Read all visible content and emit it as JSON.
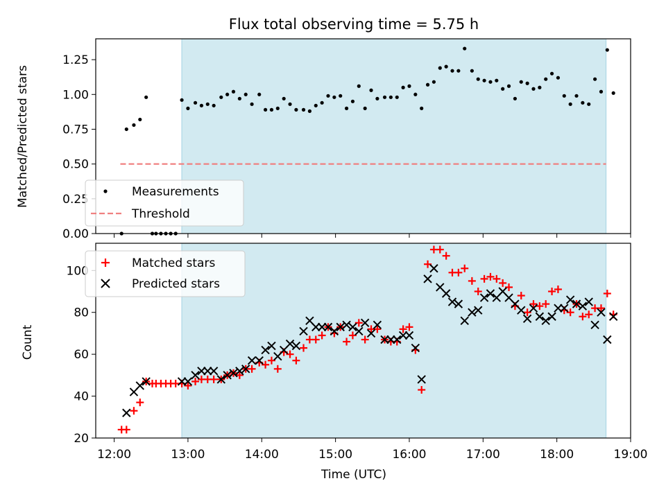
{
  "title": "Flux total observing time = 5.75 h",
  "colors": {
    "observing_span": "#add8e6",
    "measurement": "#000000",
    "threshold": "#f08080",
    "matched": "#ff0000",
    "predicted": "#000000"
  },
  "chart_data": [
    {
      "type": "scatter",
      "ylabel": "Matched/Predicted stars",
      "ylim": [
        0,
        1.4
      ],
      "xlim": [
        "11:45",
        "19:00"
      ],
      "yticks": [
        "0.00",
        "0.25",
        "0.50",
        "0.75",
        "1.00",
        "1.25"
      ],
      "shaded_span": [
        "12:55",
        "18:40"
      ],
      "legend": {
        "position": "lower-left",
        "entries": [
          "Measurements",
          "Threshold"
        ]
      },
      "threshold": {
        "name": "Threshold",
        "y": 0.5,
        "x_range": [
          "12:05",
          "18:40"
        ],
        "style": "dashed"
      },
      "series": [
        {
          "name": "Measurements",
          "marker": "dot",
          "points": [
            [
              "12:06",
              0.0
            ],
            [
              "12:10",
              0.75
            ],
            [
              "12:16",
              0.78
            ],
            [
              "12:21",
              0.82
            ],
            [
              "12:26",
              0.98
            ],
            [
              "12:31",
              0.0
            ],
            [
              "12:34",
              0.0
            ],
            [
              "12:38",
              0.0
            ],
            [
              "12:42",
              0.0
            ],
            [
              "12:46",
              0.0
            ],
            [
              "12:50",
              0.0
            ],
            [
              "12:55",
              0.96
            ],
            [
              "13:00",
              0.9
            ],
            [
              "13:06",
              0.94
            ],
            [
              "13:11",
              0.92
            ],
            [
              "13:16",
              0.93
            ],
            [
              "13:21",
              0.92
            ],
            [
              "13:27",
              0.98
            ],
            [
              "13:32",
              1.0
            ],
            [
              "13:37",
              1.02
            ],
            [
              "13:42",
              0.97
            ],
            [
              "13:47",
              1.0
            ],
            [
              "13:52",
              0.93
            ],
            [
              "13:58",
              1.0
            ],
            [
              "14:03",
              0.89
            ],
            [
              "14:08",
              0.89
            ],
            [
              "14:13",
              0.9
            ],
            [
              "14:18",
              0.97
            ],
            [
              "14:23",
              0.93
            ],
            [
              "14:28",
              0.89
            ],
            [
              "14:34",
              0.89
            ],
            [
              "14:39",
              0.88
            ],
            [
              "14:44",
              0.92
            ],
            [
              "14:49",
              0.94
            ],
            [
              "14:54",
              0.99
            ],
            [
              "14:59",
              0.98
            ],
            [
              "15:04",
              0.99
            ],
            [
              "15:09",
              0.9
            ],
            [
              "15:14",
              0.95
            ],
            [
              "15:19",
              1.06
            ],
            [
              "15:24",
              0.9
            ],
            [
              "15:29",
              1.03
            ],
            [
              "15:34",
              0.97
            ],
            [
              "15:40",
              0.98
            ],
            [
              "15:45",
              0.98
            ],
            [
              "15:50",
              0.98
            ],
            [
              "15:55",
              1.05
            ],
            [
              "16:00",
              1.06
            ],
            [
              "16:05",
              1.0
            ],
            [
              "16:10",
              0.9
            ],
            [
              "16:15",
              1.07
            ],
            [
              "16:20",
              1.09
            ],
            [
              "16:25",
              1.19
            ],
            [
              "16:30",
              1.2
            ],
            [
              "16:35",
              1.17
            ],
            [
              "16:40",
              1.17
            ],
            [
              "16:45",
              1.33
            ],
            [
              "16:51",
              1.17
            ],
            [
              "16:56",
              1.11
            ],
            [
              "17:01",
              1.1
            ],
            [
              "17:06",
              1.09
            ],
            [
              "17:11",
              1.1
            ],
            [
              "17:16",
              1.04
            ],
            [
              "17:21",
              1.06
            ],
            [
              "17:26",
              0.97
            ],
            [
              "17:31",
              1.09
            ],
            [
              "17:36",
              1.08
            ],
            [
              "17:41",
              1.04
            ],
            [
              "17:46",
              1.05
            ],
            [
              "17:51",
              1.11
            ],
            [
              "17:56",
              1.15
            ],
            [
              "18:01",
              1.12
            ],
            [
              "18:06",
              0.99
            ],
            [
              "18:11",
              0.93
            ],
            [
              "18:16",
              0.99
            ],
            [
              "18:21",
              0.94
            ],
            [
              "18:26",
              0.93
            ],
            [
              "18:31",
              1.11
            ],
            [
              "18:36",
              1.02
            ],
            [
              "18:41",
              1.32
            ],
            [
              "18:46",
              1.01
            ]
          ]
        }
      ]
    },
    {
      "type": "scatter",
      "xlabel": "Time (UTC)",
      "ylabel": "Count",
      "ylim": [
        20,
        113
      ],
      "xlim": [
        "11:45",
        "19:00"
      ],
      "xticks": [
        "12:00",
        "13:00",
        "14:00",
        "15:00",
        "16:00",
        "17:00",
        "18:00",
        "19:00"
      ],
      "yticks": [
        "20",
        "40",
        "60",
        "80",
        "100"
      ],
      "shaded_span": [
        "12:55",
        "18:40"
      ],
      "legend": {
        "position": "upper-left",
        "entries": [
          "Matched stars",
          "Predicted stars"
        ]
      },
      "series": [
        {
          "name": "Matched stars",
          "marker": "plus",
          "points": [
            [
              "12:06",
              24
            ],
            [
              "12:10",
              24
            ],
            [
              "12:16",
              33
            ],
            [
              "12:21",
              37
            ],
            [
              "12:26",
              47
            ],
            [
              "12:31",
              46
            ],
            [
              "12:34",
              46
            ],
            [
              "12:38",
              46
            ],
            [
              "12:42",
              46
            ],
            [
              "12:46",
              46
            ],
            [
              "12:50",
              46
            ],
            [
              "12:55",
              46
            ],
            [
              "13:00",
              45
            ],
            [
              "13:06",
              47
            ],
            [
              "13:11",
              48
            ],
            [
              "13:16",
              48
            ],
            [
              "13:21",
              48
            ],
            [
              "13:27",
              48
            ],
            [
              "13:32",
              50
            ],
            [
              "13:37",
              51
            ],
            [
              "13:42",
              50
            ],
            [
              "13:47",
              53
            ],
            [
              "13:52",
              53
            ],
            [
              "13:58",
              56
            ],
            [
              "14:03",
              55
            ],
            [
              "14:08",
              57
            ],
            [
              "14:13",
              53
            ],
            [
              "14:18",
              61
            ],
            [
              "14:23",
              60
            ],
            [
              "14:28",
              57
            ],
            [
              "14:34",
              63
            ],
            [
              "14:39",
              67
            ],
            [
              "14:44",
              67
            ],
            [
              "14:49",
              69
            ],
            [
              "14:54",
              73
            ],
            [
              "14:59",
              70
            ],
            [
              "15:04",
              73
            ],
            [
              "15:09",
              66
            ],
            [
              "15:14",
              69
            ],
            [
              "15:19",
              75
            ],
            [
              "15:24",
              67
            ],
            [
              "15:29",
              72
            ],
            [
              "15:34",
              72
            ],
            [
              "15:40",
              67
            ],
            [
              "15:45",
              66
            ],
            [
              "15:50",
              66
            ],
            [
              "15:55",
              72
            ],
            [
              "16:00",
              73
            ],
            [
              "16:05",
              62
            ],
            [
              "16:10",
              43
            ],
            [
              "16:15",
              103
            ],
            [
              "16:20",
              110
            ],
            [
              "16:25",
              110
            ],
            [
              "16:30",
              107
            ],
            [
              "16:35",
              99
            ],
            [
              "16:40",
              99
            ],
            [
              "16:45",
              101
            ],
            [
              "16:51",
              95
            ],
            [
              "16:56",
              90
            ],
            [
              "17:01",
              96
            ],
            [
              "17:06",
              97
            ],
            [
              "17:11",
              96
            ],
            [
              "17:16",
              94
            ],
            [
              "17:21",
              92
            ],
            [
              "17:26",
              83
            ],
            [
              "17:31",
              88
            ],
            [
              "17:36",
              80
            ],
            [
              "17:41",
              84
            ],
            [
              "17:46",
              83
            ],
            [
              "17:51",
              84
            ],
            [
              "17:56",
              90
            ],
            [
              "18:01",
              91
            ],
            [
              "18:06",
              81
            ],
            [
              "18:11",
              80
            ],
            [
              "18:16",
              84
            ],
            [
              "18:21",
              78
            ],
            [
              "18:26",
              79
            ],
            [
              "18:31",
              82
            ],
            [
              "18:36",
              82
            ],
            [
              "18:41",
              89
            ],
            [
              "18:46",
              79
            ]
          ]
        },
        {
          "name": "Predicted stars",
          "marker": "x",
          "points": [
            [
              "12:10",
              32
            ],
            [
              "12:16",
              42
            ],
            [
              "12:21",
              45
            ],
            [
              "12:26",
              47
            ],
            [
              "12:55",
              47
            ],
            [
              "13:00",
              47
            ],
            [
              "13:06",
              50
            ],
            [
              "13:11",
              52
            ],
            [
              "13:16",
              52
            ],
            [
              "13:21",
              52
            ],
            [
              "13:27",
              48
            ],
            [
              "13:32",
              50
            ],
            [
              "13:37",
              51
            ],
            [
              "13:42",
              52
            ],
            [
              "13:47",
              53
            ],
            [
              "13:52",
              57
            ],
            [
              "13:58",
              57
            ],
            [
              "14:03",
              62
            ],
            [
              "14:08",
              64
            ],
            [
              "14:13",
              59
            ],
            [
              "14:18",
              62
            ],
            [
              "14:23",
              65
            ],
            [
              "14:28",
              64
            ],
            [
              "14:34",
              71
            ],
            [
              "14:39",
              76
            ],
            [
              "14:44",
              73
            ],
            [
              "14:49",
              73
            ],
            [
              "14:54",
              73
            ],
            [
              "14:59",
              71
            ],
            [
              "15:04",
              73
            ],
            [
              "15:09",
              74
            ],
            [
              "15:14",
              73
            ],
            [
              "15:19",
              71
            ],
            [
              "15:24",
              75
            ],
            [
              "15:29",
              70
            ],
            [
              "15:34",
              74
            ],
            [
              "15:40",
              67
            ],
            [
              "15:45",
              67
            ],
            [
              "15:50",
              67
            ],
            [
              "15:55",
              69
            ],
            [
              "16:00",
              69
            ],
            [
              "16:05",
              63
            ],
            [
              "16:10",
              48
            ],
            [
              "16:15",
              96
            ],
            [
              "16:20",
              101
            ],
            [
              "16:25",
              92
            ],
            [
              "16:30",
              89
            ],
            [
              "16:35",
              85
            ],
            [
              "16:40",
              84
            ],
            [
              "16:45",
              76
            ],
            [
              "16:51",
              80
            ],
            [
              "16:56",
              81
            ],
            [
              "17:01",
              87
            ],
            [
              "17:06",
              89
            ],
            [
              "17:11",
              87
            ],
            [
              "17:16",
              90
            ],
            [
              "17:21",
              87
            ],
            [
              "17:26",
              84
            ],
            [
              "17:31",
              81
            ],
            [
              "17:36",
              77
            ],
            [
              "17:41",
              82
            ],
            [
              "17:46",
              78
            ],
            [
              "17:51",
              76
            ],
            [
              "17:56",
              78
            ],
            [
              "18:01",
              82
            ],
            [
              "18:06",
              82
            ],
            [
              "18:11",
              86
            ],
            [
              "18:16",
              84
            ],
            [
              "18:21",
              83
            ],
            [
              "18:26",
              85
            ],
            [
              "18:31",
              74
            ],
            [
              "18:36",
              80
            ],
            [
              "18:41",
              67
            ],
            [
              "18:46",
              78
            ]
          ]
        }
      ]
    }
  ]
}
